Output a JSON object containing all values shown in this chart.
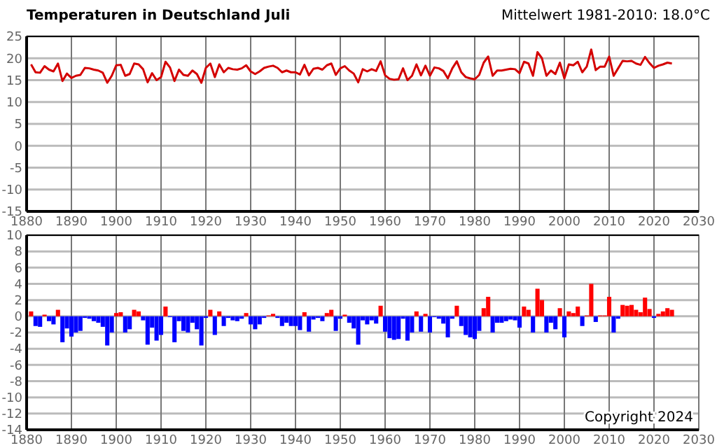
{
  "chart_data": [
    {
      "type": "line",
      "title": "Temperaturen in Deutschland Juli",
      "annotations": [
        "Mittelwert 1981-2010: 18.0°C"
      ],
      "x": [
        1881,
        1882,
        1883,
        1884,
        1885,
        1886,
        1887,
        1888,
        1889,
        1890,
        1891,
        1892,
        1893,
        1894,
        1895,
        1896,
        1897,
        1898,
        1899,
        1900,
        1901,
        1902,
        1903,
        1904,
        1905,
        1906,
        1907,
        1908,
        1909,
        1910,
        1911,
        1912,
        1913,
        1914,
        1915,
        1916,
        1917,
        1918,
        1919,
        1920,
        1921,
        1922,
        1923,
        1924,
        1925,
        1926,
        1927,
        1928,
        1929,
        1930,
        1931,
        1932,
        1933,
        1934,
        1935,
        1936,
        1937,
        1938,
        1939,
        1940,
        1941,
        1942,
        1943,
        1944,
        1945,
        1946,
        1947,
        1948,
        1949,
        1950,
        1951,
        1952,
        1953,
        1954,
        1955,
        1956,
        1957,
        1958,
        1959,
        1960,
        1961,
        1962,
        1963,
        1964,
        1965,
        1966,
        1967,
        1968,
        1969,
        1970,
        1971,
        1972,
        1973,
        1974,
        1975,
        1976,
        1977,
        1978,
        1979,
        1980,
        1981,
        1982,
        1983,
        1984,
        1985,
        1986,
        1987,
        1988,
        1989,
        1990,
        1991,
        1992,
        1993,
        1994,
        1995,
        1996,
        1997,
        1998,
        1999,
        2000,
        2001,
        2002,
        2003,
        2004,
        2005,
        2006,
        2007,
        2008,
        2009,
        2010,
        2011,
        2012,
        2013,
        2014,
        2015,
        2016,
        2017,
        2018,
        2019,
        2020,
        2021,
        2022,
        2023,
        2024
      ],
      "series": [
        {
          "color": "#d40000",
          "values": [
            18.6,
            16.8,
            16.7,
            18.2,
            17.4,
            17.0,
            18.8,
            14.8,
            16.5,
            15.5,
            16.0,
            16.2,
            17.8,
            17.7,
            17.4,
            17.2,
            16.7,
            14.4,
            16.0,
            18.4,
            18.5,
            16.0,
            16.4,
            18.8,
            18.6,
            17.5,
            14.5,
            16.6,
            15.0,
            15.7,
            19.2,
            17.9,
            14.8,
            17.4,
            16.2,
            16.0,
            17.2,
            16.4,
            14.4,
            17.8,
            18.8,
            15.7,
            18.6,
            16.8,
            17.8,
            17.5,
            17.4,
            17.7,
            18.4,
            17.0,
            16.4,
            17.0,
            17.8,
            18.1,
            18.3,
            17.8,
            16.8,
            17.2,
            16.8,
            16.8,
            16.3,
            18.5,
            16.1,
            17.6,
            17.8,
            17.4,
            18.4,
            18.8,
            16.2,
            17.7,
            18.2,
            17.2,
            16.5,
            14.5,
            17.5,
            17.0,
            17.5,
            17.1,
            19.3,
            16.1,
            15.3,
            15.1,
            15.2,
            17.7,
            15.0,
            16.0,
            18.6,
            16.1,
            18.3,
            16.0,
            17.9,
            17.7,
            17.1,
            15.4,
            17.7,
            19.3,
            16.8,
            15.7,
            15.4,
            15.2,
            16.2,
            19.0,
            20.4,
            16.0,
            17.2,
            17.2,
            17.4,
            17.6,
            17.5,
            16.6,
            19.2,
            18.8,
            16.0,
            21.4,
            20.0,
            16.0,
            17.2,
            16.4,
            19.0,
            15.4,
            18.6,
            18.4,
            19.2,
            16.8,
            18.1,
            22.0,
            17.3,
            18.1,
            18.1,
            20.4,
            16.0,
            17.7,
            19.4,
            19.3,
            19.4,
            18.8,
            18.5,
            20.3,
            18.9,
            17.8,
            18.3,
            18.6,
            19.0,
            18.8
          ]
        }
      ],
      "xlim": [
        1880,
        2030
      ],
      "xticks": [
        1880,
        1890,
        1900,
        1910,
        1920,
        1930,
        1940,
        1950,
        1960,
        1970,
        1980,
        1990,
        2000,
        2010,
        2020,
        2030
      ],
      "ylim": [
        -15,
        25
      ],
      "yticks": [
        -15,
        -10,
        -5,
        0,
        5,
        10,
        15,
        20,
        25
      ],
      "grid": true,
      "marker": "none",
      "line_style": "solid"
    },
    {
      "type": "bar",
      "annotations": [
        "Copyright 2024"
      ],
      "x": [
        1881,
        1882,
        1883,
        1884,
        1885,
        1886,
        1887,
        1888,
        1889,
        1890,
        1891,
        1892,
        1893,
        1894,
        1895,
        1896,
        1897,
        1898,
        1899,
        1900,
        1901,
        1902,
        1903,
        1904,
        1905,
        1906,
        1907,
        1908,
        1909,
        1910,
        1911,
        1912,
        1913,
        1914,
        1915,
        1916,
        1917,
        1918,
        1919,
        1920,
        1921,
        1922,
        1923,
        1924,
        1925,
        1926,
        1927,
        1928,
        1929,
        1930,
        1931,
        1932,
        1933,
        1934,
        1935,
        1936,
        1937,
        1938,
        1939,
        1940,
        1941,
        1942,
        1943,
        1944,
        1945,
        1946,
        1947,
        1948,
        1949,
        1950,
        1951,
        1952,
        1953,
        1954,
        1955,
        1956,
        1957,
        1958,
        1959,
        1960,
        1961,
        1962,
        1963,
        1964,
        1965,
        1966,
        1967,
        1968,
        1969,
        1970,
        1971,
        1972,
        1973,
        1974,
        1975,
        1976,
        1977,
        1978,
        1979,
        1980,
        1981,
        1982,
        1983,
        1984,
        1985,
        1986,
        1987,
        1988,
        1989,
        1990,
        1991,
        1992,
        1993,
        1994,
        1995,
        1996,
        1997,
        1998,
        1999,
        2000,
        2001,
        2002,
        2003,
        2004,
        2005,
        2006,
        2007,
        2008,
        2009,
        2010,
        2011,
        2012,
        2013,
        2014,
        2015,
        2016,
        2017,
        2018,
        2019,
        2020,
        2021,
        2022,
        2023,
        2024
      ],
      "values": [
        0.6,
        -1.2,
        -1.3,
        0.2,
        -0.6,
        -1.0,
        0.8,
        -3.2,
        -1.5,
        -2.5,
        -2.0,
        -1.8,
        -0.2,
        -0.3,
        -0.6,
        -0.8,
        -1.3,
        -3.6,
        -2.0,
        0.4,
        0.5,
        -2.0,
        -1.6,
        0.8,
        0.6,
        -0.5,
        -3.5,
        -1.4,
        -3.0,
        -2.3,
        1.2,
        -0.1,
        -3.2,
        -0.6,
        -1.8,
        -2.0,
        -0.8,
        -1.6,
        -3.6,
        -0.2,
        0.8,
        -2.3,
        0.6,
        -1.2,
        -0.2,
        -0.5,
        -0.6,
        -0.3,
        0.4,
        -1.0,
        -1.6,
        -1.0,
        -0.2,
        0.1,
        0.3,
        -0.2,
        -1.2,
        -0.8,
        -1.2,
        -1.2,
        -1.7,
        0.5,
        -1.9,
        -0.4,
        -0.2,
        -0.6,
        0.4,
        0.8,
        -1.8,
        -0.3,
        0.2,
        -0.8,
        -1.5,
        -3.5,
        -0.5,
        -1.0,
        -0.5,
        -0.9,
        1.3,
        -1.9,
        -2.7,
        -2.9,
        -2.8,
        -0.3,
        -3.0,
        -2.0,
        0.6,
        -1.9,
        0.3,
        -2.0,
        -0.1,
        -0.3,
        -0.9,
        -2.6,
        -0.3,
        1.3,
        -1.2,
        -2.3,
        -2.6,
        -2.8,
        -1.8,
        1.0,
        2.4,
        -2.0,
        -0.8,
        -0.8,
        -0.6,
        -0.4,
        -0.5,
        -1.4,
        1.2,
        0.8,
        -2.0,
        3.4,
        2.0,
        -2.0,
        -0.8,
        -1.6,
        1.0,
        -2.6,
        0.6,
        0.4,
        1.2,
        -1.2,
        0.1,
        4.0,
        -0.7,
        0.1,
        0.1,
        2.4,
        -2.0,
        -0.3,
        1.4,
        1.3,
        1.4,
        0.8,
        0.5,
        2.3,
        0.9,
        -0.2,
        0.3,
        0.6,
        1.0,
        0.8
      ],
      "colors": [
        "#ff0000",
        "#0000ff",
        "#0000ff",
        "#ff0000",
        "#0000ff",
        "#0000ff",
        "#ff0000",
        "#0000ff",
        "#0000ff",
        "#0000ff",
        "#0000ff",
        "#0000ff",
        "#0000ff",
        "#0000ff",
        "#0000ff",
        "#0000ff",
        "#0000ff",
        "#0000ff",
        "#0000ff",
        "#ff0000",
        "#ff0000",
        "#0000ff",
        "#0000ff",
        "#ff0000",
        "#ff0000",
        "#0000ff",
        "#0000ff",
        "#0000ff",
        "#0000ff",
        "#0000ff",
        "#ff0000",
        "#0000ff",
        "#0000ff",
        "#0000ff",
        "#0000ff",
        "#0000ff",
        "#0000ff",
        "#0000ff",
        "#0000ff",
        "#0000ff",
        "#ff0000",
        "#0000ff",
        "#ff0000",
        "#0000ff",
        "#0000ff",
        "#0000ff",
        "#0000ff",
        "#0000ff",
        "#ff0000",
        "#0000ff",
        "#0000ff",
        "#0000ff",
        "#0000ff",
        "#ff0000",
        "#ff0000",
        "#0000ff",
        "#0000ff",
        "#0000ff",
        "#0000ff",
        "#0000ff",
        "#0000ff",
        "#ff0000",
        "#0000ff",
        "#0000ff",
        "#0000ff",
        "#0000ff",
        "#ff0000",
        "#ff0000",
        "#0000ff",
        "#0000ff",
        "#ff0000",
        "#0000ff",
        "#0000ff",
        "#0000ff",
        "#0000ff",
        "#0000ff",
        "#0000ff",
        "#0000ff",
        "#ff0000",
        "#0000ff",
        "#0000ff",
        "#0000ff",
        "#0000ff",
        "#0000ff",
        "#0000ff",
        "#0000ff",
        "#ff0000",
        "#0000ff",
        "#ff0000",
        "#0000ff",
        "#0000ff",
        "#0000ff",
        "#0000ff",
        "#0000ff",
        "#0000ff",
        "#ff0000",
        "#0000ff",
        "#0000ff",
        "#0000ff",
        "#0000ff",
        "#0000ff",
        "#ff0000",
        "#ff0000",
        "#0000ff",
        "#0000ff",
        "#0000ff",
        "#0000ff",
        "#0000ff",
        "#0000ff",
        "#0000ff",
        "#ff0000",
        "#ff0000",
        "#0000ff",
        "#ff0000",
        "#ff0000",
        "#0000ff",
        "#0000ff",
        "#0000ff",
        "#ff0000",
        "#0000ff",
        "#ff0000",
        "#ff0000",
        "#ff0000",
        "#0000ff",
        "#ff0000",
        "#ff0000",
        "#0000ff",
        "#ff0000",
        "#ff0000",
        "#ff0000",
        "#0000ff",
        "#0000ff",
        "#ff0000",
        "#ff0000",
        "#ff0000",
        "#ff0000",
        "#ff0000",
        "#ff0000",
        "#ff0000",
        "#0000ff",
        "#ff0000",
        "#ff0000",
        "#ff0000",
        "#ff0000"
      ],
      "xlim": [
        1880,
        2030
      ],
      "xticks": [
        1880,
        1890,
        1900,
        1910,
        1920,
        1930,
        1940,
        1950,
        1960,
        1970,
        1980,
        1990,
        2000,
        2010,
        2020,
        2030
      ],
      "ylim": [
        -14,
        10
      ],
      "yticks": [
        -14,
        -12,
        -10,
        -8,
        -6,
        -4,
        -2,
        0,
        2,
        4,
        6,
        8,
        10
      ],
      "grid": true
    }
  ]
}
